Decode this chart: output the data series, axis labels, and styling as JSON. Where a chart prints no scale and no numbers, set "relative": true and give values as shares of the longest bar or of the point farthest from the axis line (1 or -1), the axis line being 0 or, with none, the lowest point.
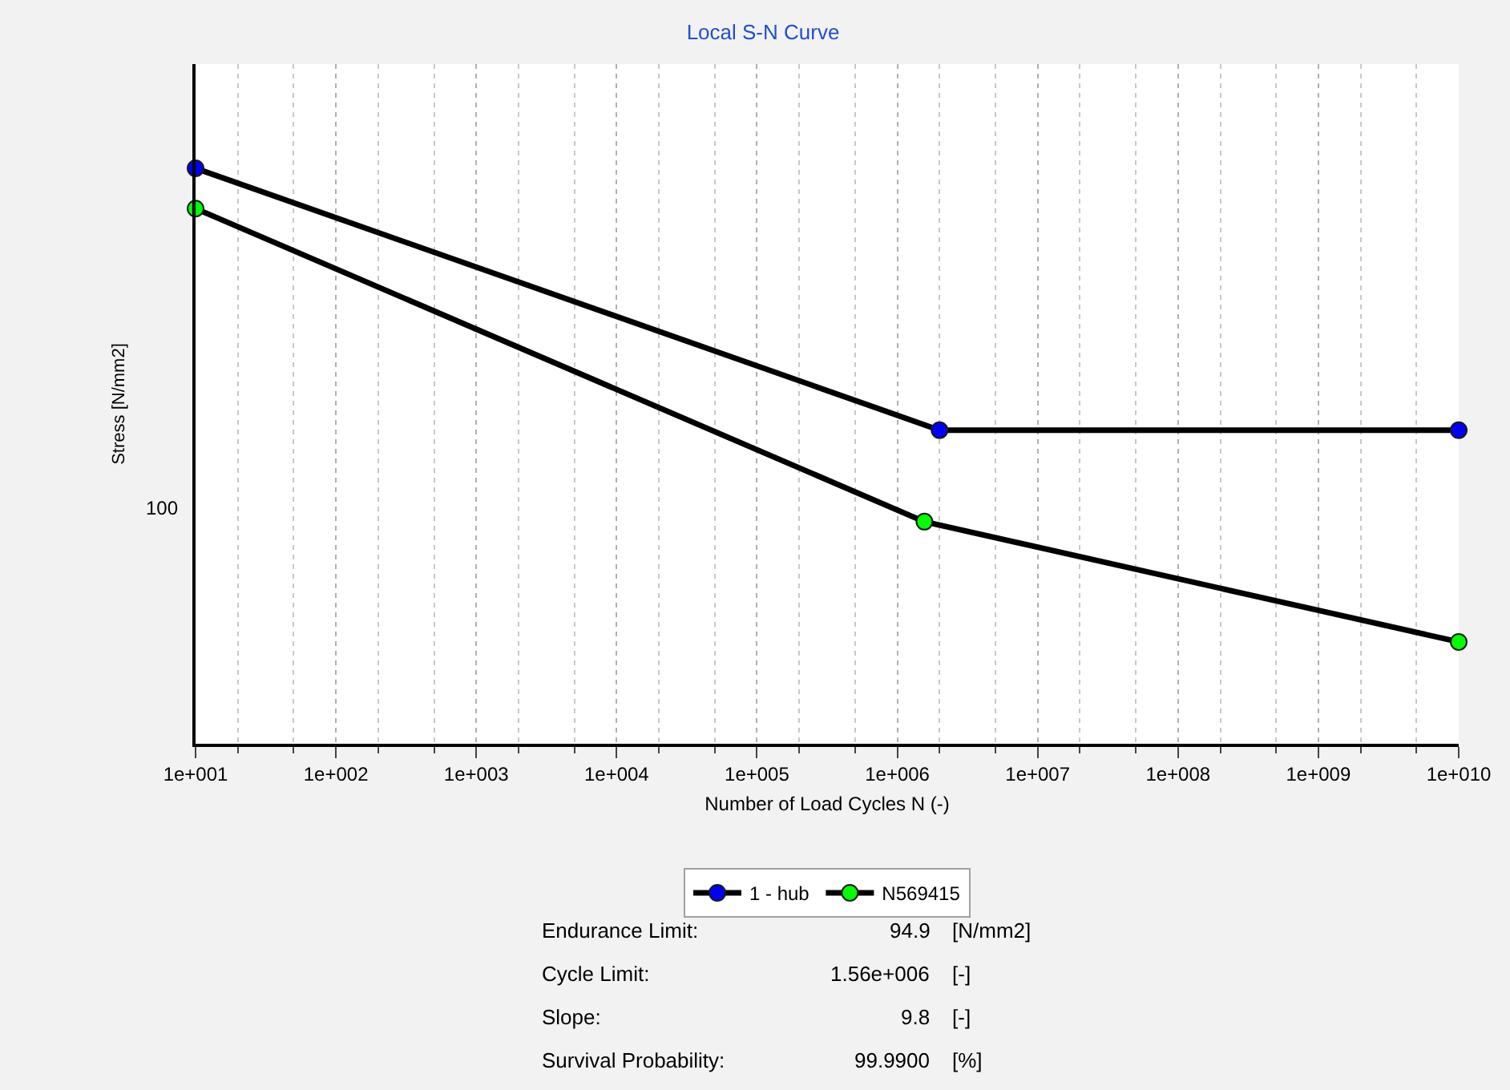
{
  "chart_data": {
    "type": "line",
    "title": "Local S-N Curve",
    "xlabel": "Number of Load Cycles N (-)",
    "ylabel": "Stress [N/mm2]",
    "log": "x",
    "relative": true,
    "grid": "x",
    "legend": "bottom",
    "marker": "circle",
    "line_style": "solid",
    "xlim": [
      10,
      10000000000
    ],
    "xticks": [
      {
        "value": 10,
        "label": "1e+001"
      },
      {
        "value": 100,
        "label": "1e+002"
      },
      {
        "value": 1000,
        "label": "1e+003"
      },
      {
        "value": 10000,
        "label": "1e+004"
      },
      {
        "value": 100000,
        "label": "1e+005"
      },
      {
        "value": 1000000,
        "label": "1e+006"
      },
      {
        "value": 10000000,
        "label": "1e+007"
      },
      {
        "value": 100000000,
        "label": "1e+008"
      },
      {
        "value": 1000000000,
        "label": "1e+009"
      },
      {
        "value": 10000000000,
        "label": "1e+010"
      }
    ],
    "series": [
      {
        "name": "1 - hub",
        "color": "#0000ff",
        "x": [
          10,
          2000000,
          10000000000
        ],
        "values": [
          1,
          0.545,
          0.545
        ]
      },
      {
        "name": "N569415",
        "color": "#00ff00",
        "x": [
          10,
          1560000,
          10000000000
        ],
        "values": [
          0.93,
          0.386,
          0.177
        ]
      }
    ],
    "annotations": [
      "100",
      "Endurance Limit:",
      "94.9",
      "[N/mm2]",
      "Cycle Limit:",
      "1.56e+006",
      "[-]",
      "Slope:",
      "9.8",
      "[-]",
      "Survival Probability:",
      "99.9900",
      "[%]"
    ]
  }
}
